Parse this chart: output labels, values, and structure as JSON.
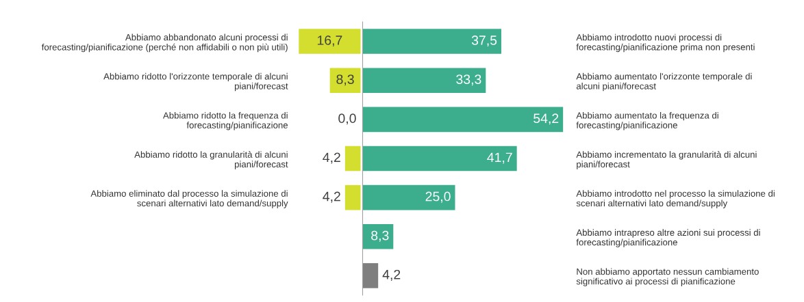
{
  "chart_data": [
    {
      "type": "bar",
      "orientation": "horizontal",
      "xlim": [
        16.7,
        0
      ],
      "categories": [
        "Abbiamo abbandonato alcuni processi di\nforecasting/pianificazione (perché non affidabili o non più utili)",
        "Abbiamo ridotto l'orizzonte temporale di alcuni\npiani/forecast",
        "Abbiamo ridotto la frequenza di\nforecasting/pianificazione",
        "Abbiamo ridotto la granularità di alcuni\npiani/forecast",
        "Abbiamo eliminato dal processo la simulazione di\nscenari alternativi lato demand/supply",
        null,
        null
      ],
      "color": "#d4de2f",
      "values": [
        16.7,
        8.3,
        0.0,
        4.2,
        4.2,
        null,
        null
      ],
      "value_labels": [
        "16,7",
        "8,3",
        "0,0",
        "4,2",
        "4,2",
        null,
        null
      ]
    },
    {
      "type": "bar",
      "orientation": "horizontal",
      "xlim": [
        0,
        54.2
      ],
      "categories": [
        "Abbiamo introdotto nuovi processi di\nforecasting/pianificazione prima non presenti",
        "Abbiamo aumentato l'orizzonte temporale di\nalcuni piani/forecast",
        "Abbiamo aumentato la frequenza di\nforecasting/pianificazione",
        "Abbiamo incrementato la granularità di alcuni\npiani/forecast",
        "Abbiamo introdotto nel processo la simulazione di\nscenari alternativi lato demand/supply",
        "Abbiamo intrapreso altre azioni sui processi di\nforecasting/pianificazione",
        "Non abbiamo apportato nessun cambiamento\nsignificativo ai processi di pianificazione"
      ],
      "colors": [
        "#3cae8e",
        "#3cae8e",
        "#3cae8e",
        "#3cae8e",
        "#3cae8e",
        "#3cae8e",
        "#7f7f7f"
      ],
      "values": [
        37.5,
        33.3,
        54.2,
        41.7,
        25.0,
        8.3,
        4.2
      ],
      "value_labels": [
        "37,5",
        "33,3",
        "54,2",
        "41,7",
        "25,0",
        "8,3",
        "4,2"
      ]
    }
  ]
}
